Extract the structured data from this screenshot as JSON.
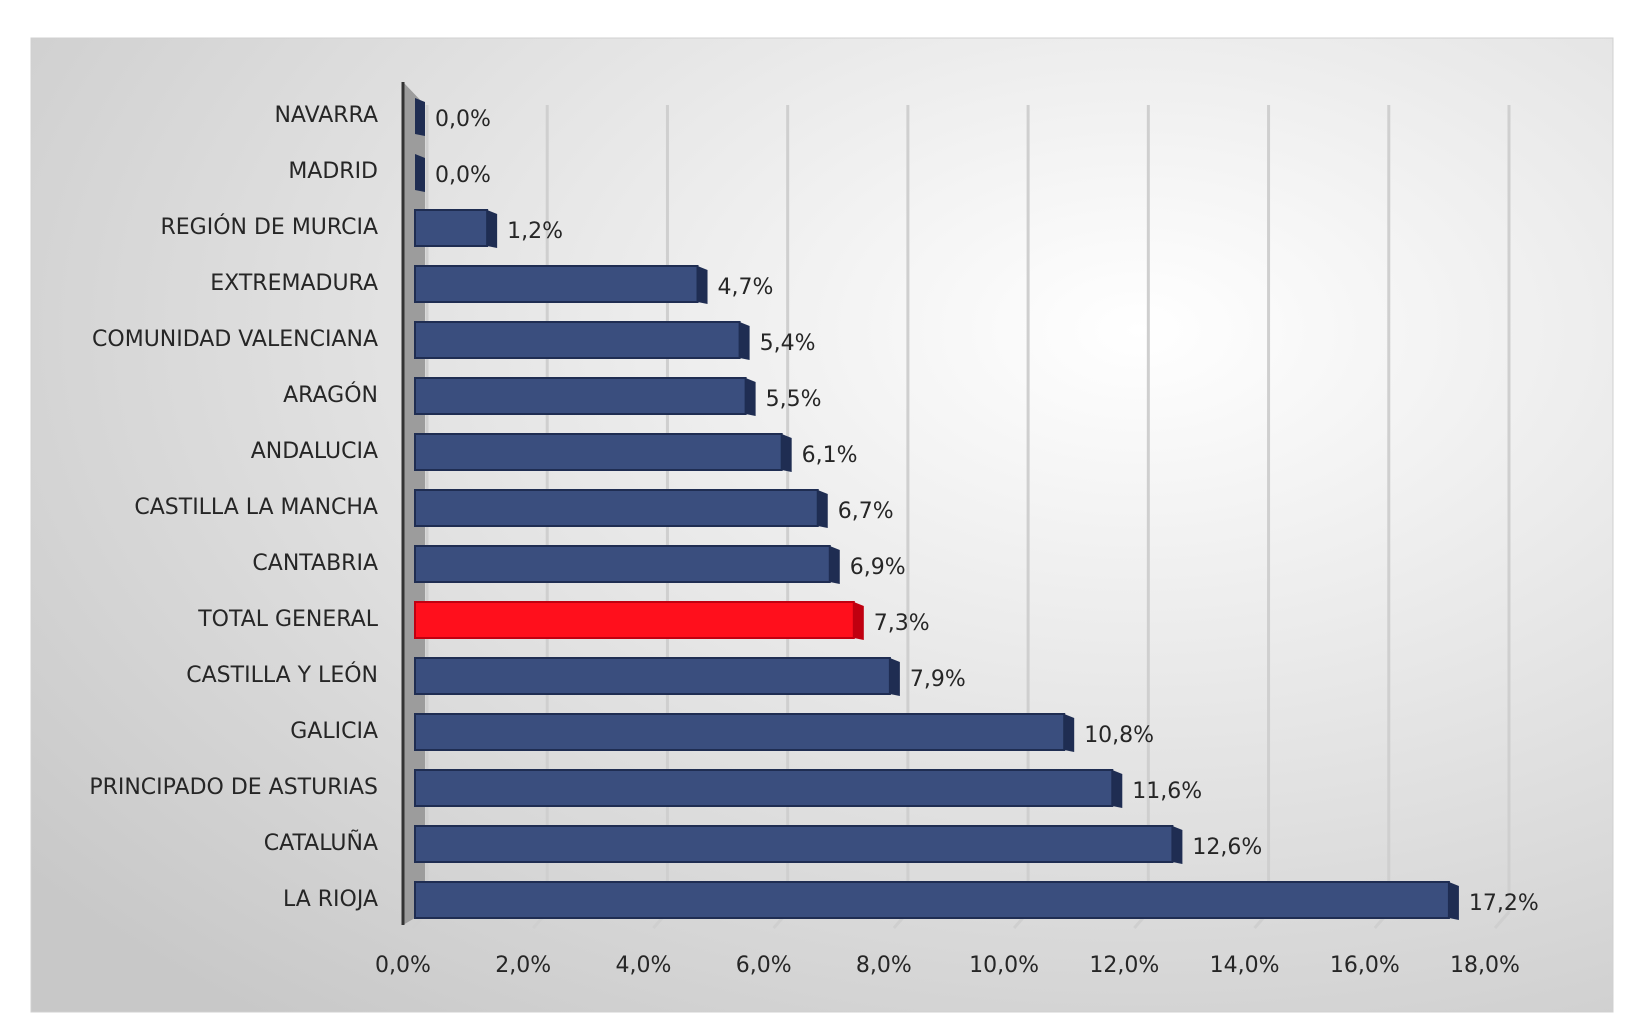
{
  "chart_data": {
    "type": "bar",
    "orientation": "horizontal",
    "categories": [
      "NAVARRA",
      "MADRID",
      "REGIÓN DE MURCIA",
      "EXTREMADURA",
      "COMUNIDAD VALENCIANA",
      "ARAGÓN",
      "ANDALUCIA",
      "CASTILLA LA MANCHA",
      "CANTABRIA",
      "TOTAL GENERAL",
      "CASTILLA Y LEÓN",
      "GALICIA",
      "PRINCIPADO DE ASTURIAS",
      "CATALUÑA",
      "LA RIOJA"
    ],
    "values": [
      0.0,
      0.0,
      1.2,
      4.7,
      5.4,
      5.5,
      6.1,
      6.7,
      6.9,
      7.3,
      7.9,
      10.8,
      11.6,
      12.6,
      17.2
    ],
    "value_labels": [
      "0,0%",
      "0,0%",
      "1,2%",
      "4,7%",
      "5,4%",
      "5,5%",
      "6,1%",
      "6,7%",
      "6,9%",
      "7,3%",
      "7,9%",
      "10,8%",
      "11,6%",
      "12,6%",
      "17,2%"
    ],
    "colors": [
      "#3a4e7e",
      "#3a4e7e",
      "#3a4e7e",
      "#3a4e7e",
      "#3a4e7e",
      "#3a4e7e",
      "#3a4e7e",
      "#3a4e7e",
      "#3a4e7e",
      "#ff0f1c",
      "#3a4e7e",
      "#3a4e7e",
      "#3a4e7e",
      "#3a4e7e",
      "#3a4e7e"
    ],
    "xlim": [
      0,
      18
    ],
    "xticks": [
      {
        "value": 0,
        "label": "0,0%"
      },
      {
        "value": 2,
        "label": "2,0%"
      },
      {
        "value": 4,
        "label": "4,0%"
      },
      {
        "value": 6,
        "label": "6,0%"
      },
      {
        "value": 8,
        "label": "8,0%"
      },
      {
        "value": 10,
        "label": "10,0%"
      },
      {
        "value": 12,
        "label": "12,0%"
      },
      {
        "value": 14,
        "label": "14,0%"
      },
      {
        "value": 16,
        "label": "16,0%"
      },
      {
        "value": 18,
        "label": "18,0%"
      }
    ],
    "grid": true
  }
}
